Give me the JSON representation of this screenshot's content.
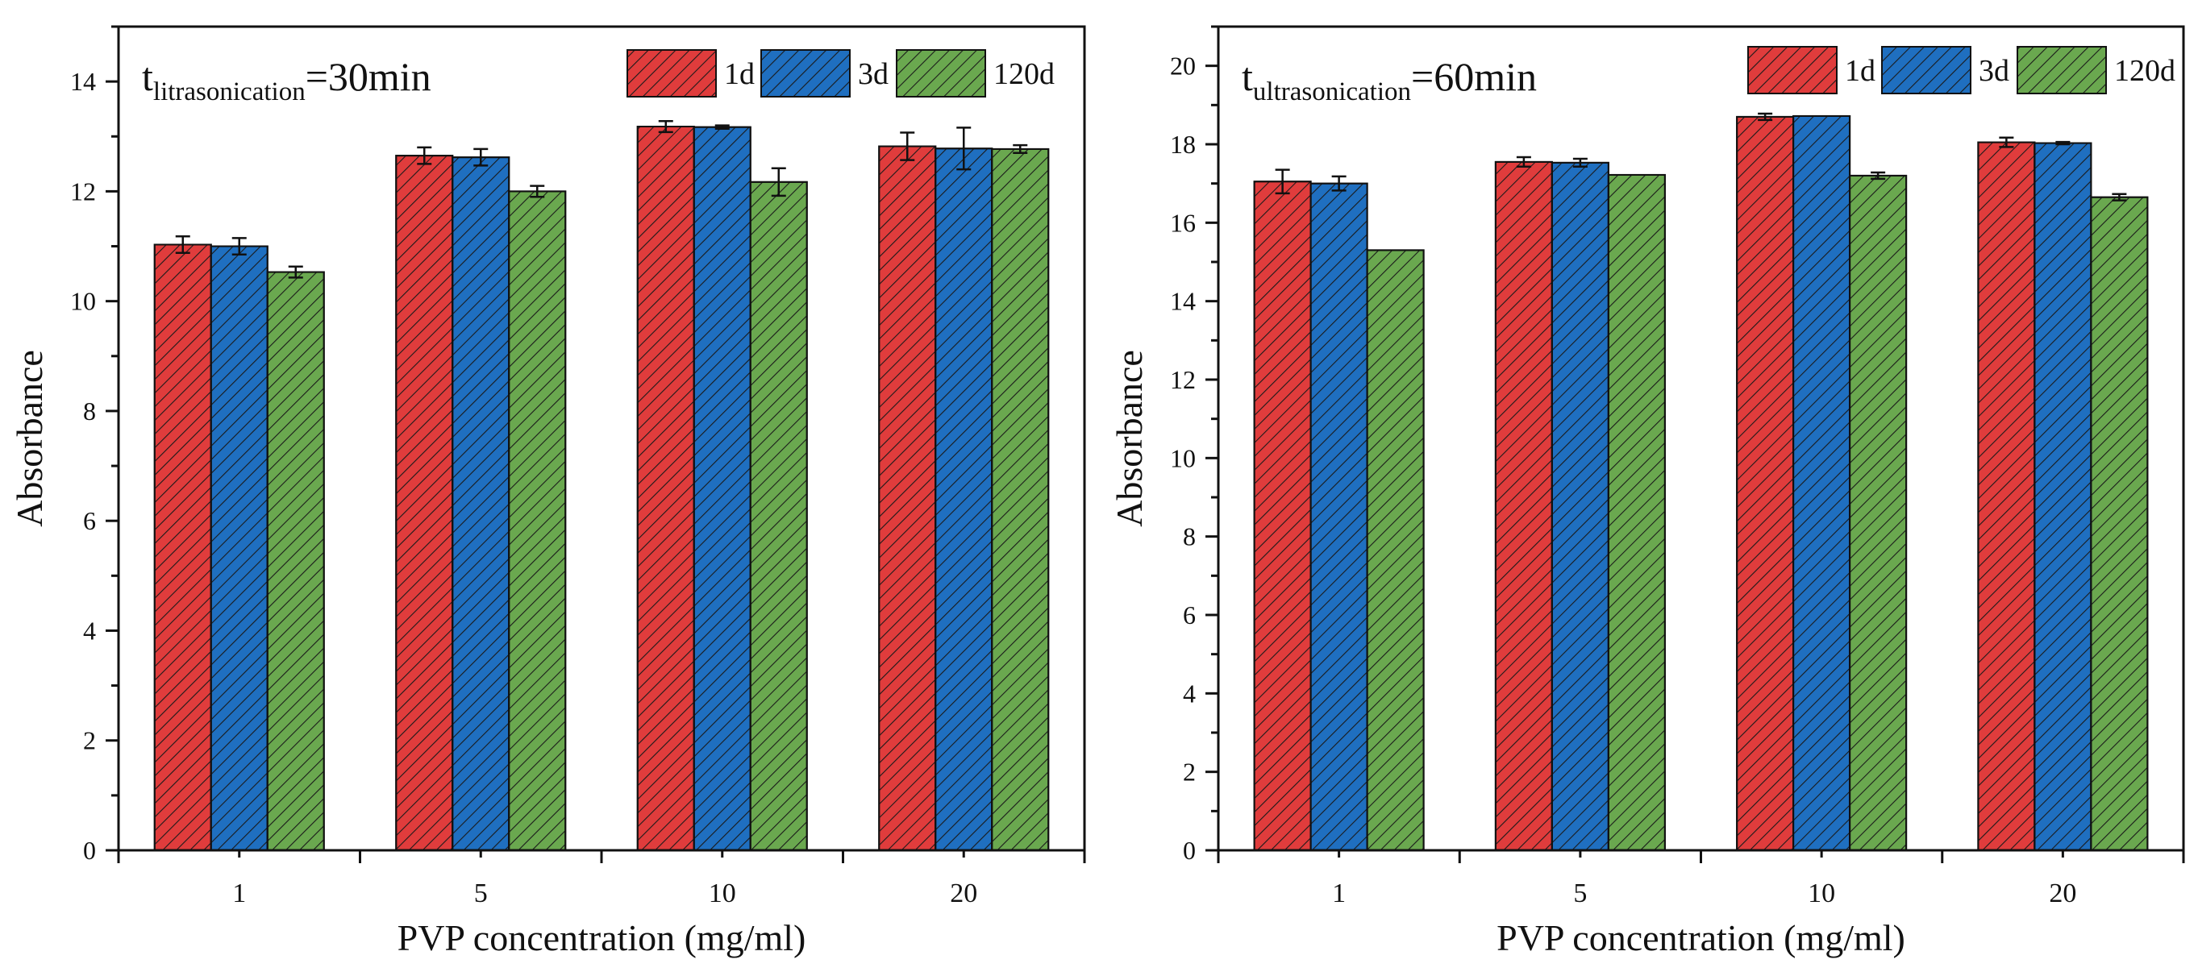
{
  "chart_data": [
    {
      "type": "bar",
      "title_main": "t",
      "title_sub": "litrasonication",
      "title_suffix": "=30min",
      "xlabel": "PVP concentration (mg/ml)",
      "ylabel": "Absorbance",
      "categories": [
        "1",
        "5",
        "10",
        "20"
      ],
      "ylim": [
        0,
        15
      ],
      "yticks": [
        0,
        2,
        4,
        6,
        8,
        10,
        12,
        14
      ],
      "ytick_labels": [
        "0",
        "2",
        "4",
        "6",
        "8",
        "10",
        "12",
        "14"
      ],
      "series": [
        {
          "name": "1d",
          "color": "#e03c3c",
          "values": [
            11.03,
            12.65,
            13.18,
            12.82
          ],
          "errors": [
            0.15,
            0.15,
            0.1,
            0.25
          ]
        },
        {
          "name": "3d",
          "color": "#1f6fc0",
          "values": [
            11.0,
            12.62,
            13.17,
            12.78
          ],
          "errors": [
            0.15,
            0.15,
            0.03,
            0.38
          ]
        },
        {
          "name": "120d",
          "color": "#6aa84f",
          "values": [
            10.53,
            12.0,
            12.17,
            12.77
          ],
          "errors": [
            0.1,
            0.1,
            0.25,
            0.07
          ]
        }
      ]
    },
    {
      "type": "bar",
      "title_main": "t",
      "title_sub": "ultrasonication",
      "title_suffix": "=60min",
      "xlabel": "PVP concentration (mg/ml)",
      "ylabel": "Absorbance",
      "categories": [
        "1",
        "5",
        "10",
        "20"
      ],
      "ylim": [
        0,
        21
      ],
      "yticks": [
        0,
        2,
        4,
        6,
        8,
        10,
        12,
        14,
        16,
        18,
        20
      ],
      "ytick_labels": [
        "0",
        "2",
        "4",
        "6",
        "8",
        "10",
        "12",
        "14",
        "16",
        "18",
        "20"
      ],
      "series": [
        {
          "name": "1d",
          "color": "#e03c3c",
          "values": [
            17.05,
            17.55,
            18.7,
            18.05
          ],
          "errors": [
            0.3,
            0.12,
            0.08,
            0.12
          ]
        },
        {
          "name": "3d",
          "color": "#1f6fc0",
          "values": [
            17.0,
            17.53,
            18.72,
            18.03
          ],
          "errors": [
            0.18,
            0.1,
            0.0,
            0.03
          ]
        },
        {
          "name": "120d",
          "color": "#6aa84f",
          "values": [
            15.3,
            17.22,
            17.2,
            16.65
          ],
          "errors": [
            0.0,
            0.0,
            0.08,
            0.08
          ]
        }
      ]
    }
  ]
}
